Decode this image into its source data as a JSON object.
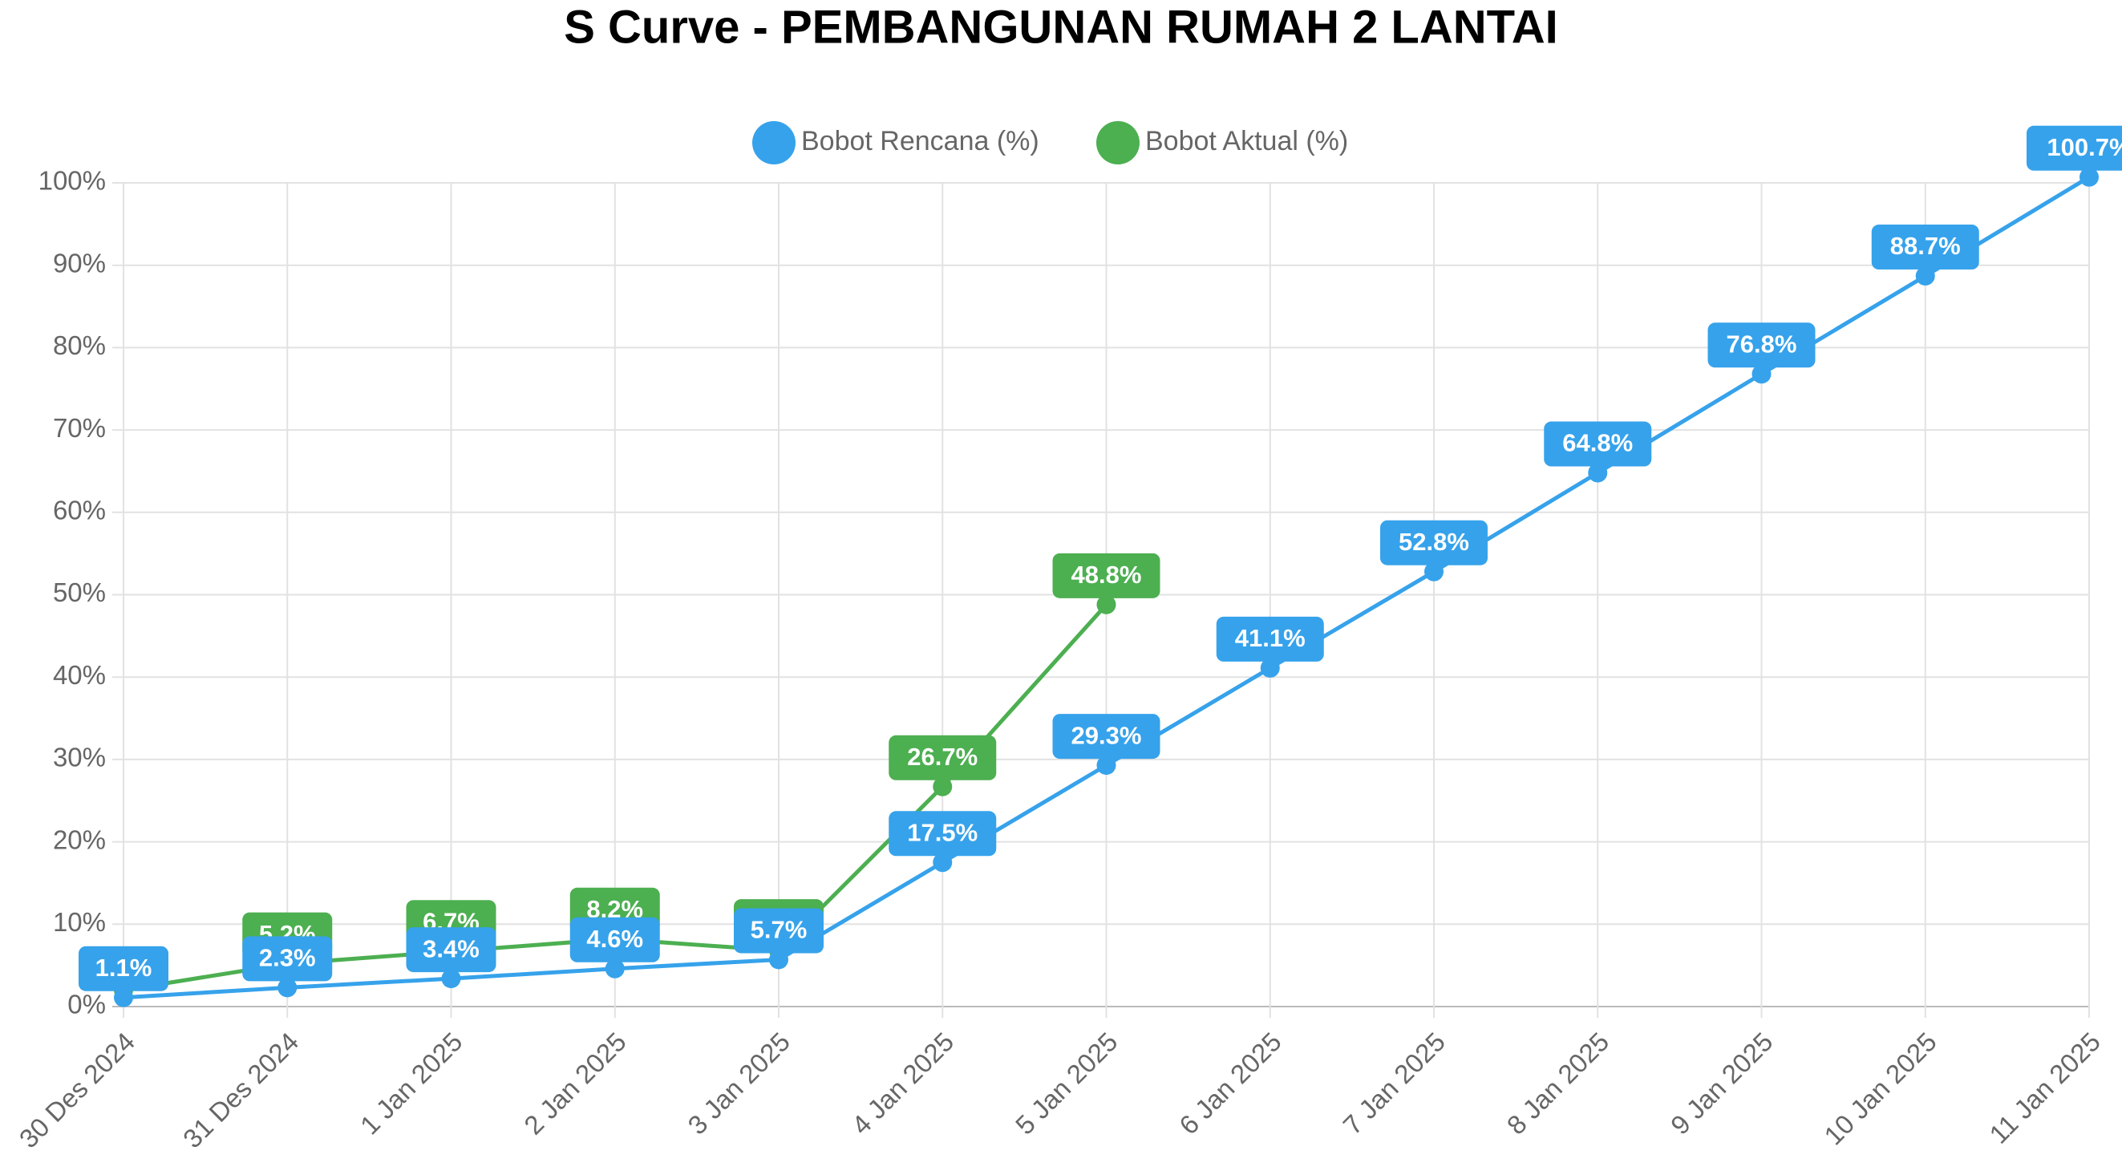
{
  "chart_data": {
    "type": "line",
    "title": "S Curve - PEMBANGUNAN RUMAH 2 LANTAI",
    "categories": [
      "30 Des 2024",
      "31 Des 2024",
      "1 Jan 2025",
      "2 Jan 2025",
      "3 Jan 2025",
      "4 Jan 2025",
      "5 Jan 2025",
      "6 Jan 2025",
      "7 Jan 2025",
      "8 Jan 2025",
      "9 Jan 2025",
      "10 Jan 2025",
      "11 Jan 2025"
    ],
    "series": [
      {
        "name": "Bobot Rencana (%)",
        "color": "#36a2eb",
        "values": [
          1.1,
          2.3,
          3.4,
          4.6,
          5.7,
          17.5,
          29.3,
          41.1,
          52.8,
          64.8,
          76.8,
          88.7,
          100.7
        ],
        "value_labels": [
          "1.1%",
          "2.3%",
          "3.4%",
          "4.6%",
          "5.7%",
          "17.5%",
          "29.3%",
          "41.1%",
          "52.8%",
          "64.8%",
          "76.8%",
          "88.7%",
          "100.7%"
        ]
      },
      {
        "name": "Bobot Aktual (%)",
        "color": "#4caf50",
        "values": [
          2.0,
          5.2,
          6.7,
          8.2,
          6.8,
          26.7,
          48.8,
          null,
          null,
          null,
          null,
          null,
          null
        ],
        "value_labels": [
          null,
          "5.2%",
          "6.7%",
          "8.2%",
          "6.8%",
          "26.7%",
          "48.8%",
          null,
          null,
          null,
          null,
          null,
          null
        ]
      }
    ],
    "ylim": [
      0,
      100
    ],
    "yticks": [
      {
        "value": 0,
        "label": "0%"
      },
      {
        "value": 10,
        "label": "10%"
      },
      {
        "value": 20,
        "label": "20%"
      },
      {
        "value": 30,
        "label": "30%"
      },
      {
        "value": 40,
        "label": "40%"
      },
      {
        "value": 50,
        "label": "50%"
      },
      {
        "value": 60,
        "label": "60%"
      },
      {
        "value": 70,
        "label": "70%"
      },
      {
        "value": 80,
        "label": "80%"
      },
      {
        "value": 90,
        "label": "90%"
      },
      {
        "value": 100,
        "label": "100%"
      }
    ],
    "grid": true,
    "legend": "top"
  }
}
